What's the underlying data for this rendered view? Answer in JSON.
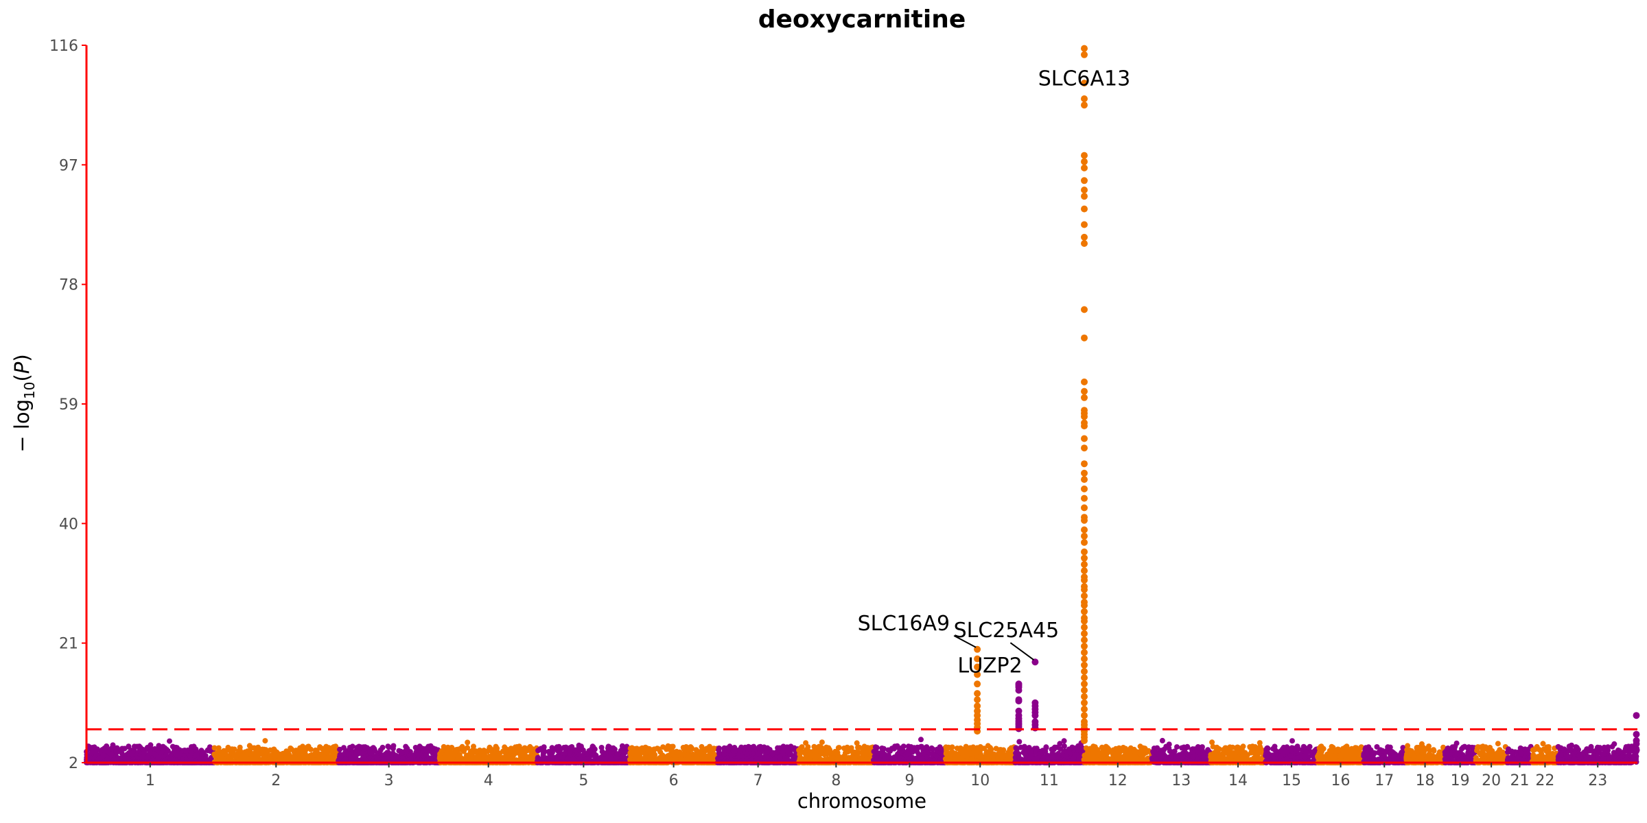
{
  "chart_data": {
    "type": "scatter",
    "subtype": "manhattan",
    "title": "deoxycarnitine",
    "xlabel": "chromosome",
    "ylabel": "−log10(P)",
    "ylabel_parts": {
      "prefix": "− log",
      "subscript": "10",
      "paren_open": "(",
      "var": "P",
      "paren_close": ")"
    },
    "ylim": [
      2,
      116
    ],
    "y_ticks": [
      2,
      21,
      40,
      59,
      78,
      97,
      116
    ],
    "significance_threshold": 7.3,
    "grid": false,
    "colors": {
      "odd": "#8b008b",
      "even": "#ee7600",
      "axis": "#ff0000",
      "threshold": "#ff0000"
    },
    "chromosomes": [
      {
        "label": "1",
        "length": 249
      },
      {
        "label": "2",
        "length": 243
      },
      {
        "label": "3",
        "length": 198
      },
      {
        "label": "4",
        "length": 191
      },
      {
        "label": "5",
        "length": 181
      },
      {
        "label": "6",
        "length": 171
      },
      {
        "label": "7",
        "length": 159
      },
      {
        "label": "8",
        "length": 146
      },
      {
        "label": "9",
        "length": 141
      },
      {
        "label": "10",
        "length": 135
      },
      {
        "label": "11",
        "length": 135
      },
      {
        "label": "12",
        "length": 133
      },
      {
        "label": "13",
        "length": 115
      },
      {
        "label": "14",
        "length": 107
      },
      {
        "label": "15",
        "length": 102
      },
      {
        "label": "16",
        "length": 90
      },
      {
        "label": "17",
        "length": 81
      },
      {
        "label": "18",
        "length": 78
      },
      {
        "label": "19",
        "length": 59
      },
      {
        "label": "20",
        "length": 63
      },
      {
        "label": "21",
        "length": 48
      },
      {
        "label": "22",
        "length": 51
      },
      {
        "label": "23",
        "length": 155
      }
    ],
    "peaks": [
      {
        "chrom": "10",
        "pos": 62,
        "values": [
          20,
          18.5,
          17.2,
          16,
          14.5,
          13,
          12,
          11,
          10.2,
          9.5,
          8.8,
          8.2,
          7.6,
          7
        ]
      },
      {
        "chrom": "11",
        "pos": 8,
        "values": [
          14.5,
          14.3,
          14,
          13.5,
          12,
          11.8,
          10.2,
          9.5,
          9.0,
          8.6,
          8.3,
          8.0,
          7.7,
          7.4
        ]
      },
      {
        "chrom": "11",
        "pos": 40,
        "values": [
          18,
          11.5,
          11,
          10.5,
          10,
          9.5,
          8.5,
          8,
          7.5
        ]
      },
      {
        "chrom": "12",
        "pos": 1,
        "values": [
          115.5,
          114.5,
          110,
          107.5,
          106.5,
          98.5,
          97.5,
          96.5,
          94.5,
          93,
          92,
          90,
          87.5,
          85.5,
          84.5,
          74,
          69.5,
          62.5,
          61,
          60,
          58,
          57.5,
          57,
          56,
          55.5,
          53.5,
          52,
          49.5,
          48,
          47,
          45.5,
          44,
          42.5,
          41,
          40.5,
          39,
          38,
          37,
          35.5,
          34.5,
          33.5,
          32.5,
          31.5,
          31,
          30,
          29.5,
          28.5,
          27.5,
          27,
          26,
          25,
          24.5,
          23.5,
          22.5,
          21.5,
          20.5,
          19.5,
          18.5,
          17.5,
          16.5,
          15.5,
          14.5,
          13.5,
          12.5,
          11.5,
          10.5,
          9.5,
          8.5,
          8,
          7.5,
          7,
          6.5,
          6,
          5.5
        ]
      },
      {
        "chrom": "23",
        "pos": 153,
        "values": [
          9.5,
          6.5,
          5.5,
          5
        ]
      }
    ],
    "annotations": [
      {
        "text": "SLC6A13",
        "chrom": "12",
        "pos": 1,
        "y": 114
      },
      {
        "text": "SLC16A9",
        "chrom": "10",
        "pos": 62,
        "y": 20
      },
      {
        "text": "SLC25A45",
        "chrom": "11",
        "pos": 40,
        "y": 18
      },
      {
        "text": "LUZP2",
        "chrom": "11",
        "pos": 8,
        "y": 14.5
      }
    ]
  }
}
